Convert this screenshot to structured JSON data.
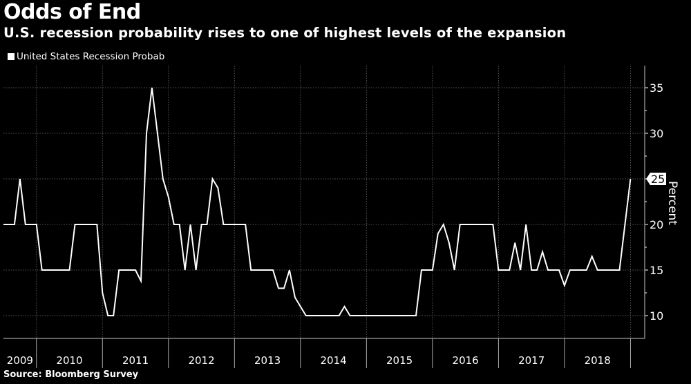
{
  "chart_data": {
    "type": "line",
    "title": "Odds of End",
    "subtitle": "U.S. recession probability rises to one of highest levels of the expansion",
    "ylabel": "Percent",
    "source": "Source: Bloomberg Survey",
    "ylim": [
      7.5,
      37.5
    ],
    "yticks": [
      10,
      15,
      20,
      25,
      30,
      35
    ],
    "xticks": [
      "2009",
      "2010",
      "2011",
      "2012",
      "2013",
      "2014",
      "2015",
      "2016",
      "2017",
      "2018"
    ],
    "grid": true,
    "legend_position": "top-left",
    "last_value_label": "25",
    "colors": {
      "background": "#000000",
      "line": "#ffffff",
      "grid": "#555555"
    },
    "series": [
      {
        "name": "United States Recession Probab",
        "points": [
          {
            "date": "2009-07",
            "value": 20
          },
          {
            "date": "2009-09",
            "value": 20
          },
          {
            "date": "2009-10",
            "value": 25
          },
          {
            "date": "2009-11",
            "value": 20
          },
          {
            "date": "2010-01",
            "value": 20
          },
          {
            "date": "2010-02",
            "value": 15
          },
          {
            "date": "2010-07",
            "value": 15
          },
          {
            "date": "2010-08",
            "value": 20
          },
          {
            "date": "2010-12",
            "value": 20
          },
          {
            "date": "2011-01",
            "value": 12.5
          },
          {
            "date": "2011-02",
            "value": 10
          },
          {
            "date": "2011-03",
            "value": 10
          },
          {
            "date": "2011-04",
            "value": 15
          },
          {
            "date": "2011-07",
            "value": 15
          },
          {
            "date": "2011-08",
            "value": 13.8
          },
          {
            "date": "2011-09",
            "value": 30
          },
          {
            "date": "2011-10",
            "value": 35
          },
          {
            "date": "2011-11",
            "value": 30
          },
          {
            "date": "2011-12",
            "value": 25
          },
          {
            "date": "2012-01",
            "value": 23
          },
          {
            "date": "2012-02",
            "value": 20
          },
          {
            "date": "2012-03",
            "value": 20
          },
          {
            "date": "2012-04",
            "value": 15
          },
          {
            "date": "2012-05",
            "value": 20
          },
          {
            "date": "2012-06",
            "value": 15
          },
          {
            "date": "2012-07",
            "value": 20
          },
          {
            "date": "2012-08",
            "value": 20
          },
          {
            "date": "2012-09",
            "value": 25
          },
          {
            "date": "2012-10",
            "value": 24
          },
          {
            "date": "2012-11",
            "value": 20
          },
          {
            "date": "2013-03",
            "value": 20
          },
          {
            "date": "2013-04",
            "value": 15
          },
          {
            "date": "2013-08",
            "value": 15
          },
          {
            "date": "2013-09",
            "value": 13
          },
          {
            "date": "2013-10",
            "value": 13
          },
          {
            "date": "2013-11",
            "value": 15
          },
          {
            "date": "2013-12",
            "value": 12
          },
          {
            "date": "2014-02",
            "value": 10
          },
          {
            "date": "2014-08",
            "value": 10
          },
          {
            "date": "2014-09",
            "value": 11
          },
          {
            "date": "2014-10",
            "value": 10
          },
          {
            "date": "2015-10",
            "value": 10
          },
          {
            "date": "2015-11",
            "value": 15
          },
          {
            "date": "2016-01",
            "value": 15
          },
          {
            "date": "2016-02",
            "value": 19
          },
          {
            "date": "2016-03",
            "value": 20
          },
          {
            "date": "2016-04",
            "value": 18
          },
          {
            "date": "2016-05",
            "value": 15
          },
          {
            "date": "2016-06",
            "value": 20
          },
          {
            "date": "2016-12",
            "value": 20
          },
          {
            "date": "2017-01",
            "value": 15
          },
          {
            "date": "2017-03",
            "value": 15
          },
          {
            "date": "2017-04",
            "value": 18
          },
          {
            "date": "2017-05",
            "value": 15
          },
          {
            "date": "2017-06",
            "value": 20
          },
          {
            "date": "2017-07",
            "value": 15
          },
          {
            "date": "2017-08",
            "value": 15
          },
          {
            "date": "2017-09",
            "value": 17
          },
          {
            "date": "2017-10",
            "value": 15
          },
          {
            "date": "2017-12",
            "value": 15
          },
          {
            "date": "2018-01",
            "value": 13.3
          },
          {
            "date": "2018-02",
            "value": 15
          },
          {
            "date": "2018-05",
            "value": 15
          },
          {
            "date": "2018-06",
            "value": 16.5
          },
          {
            "date": "2018-07",
            "value": 15
          },
          {
            "date": "2018-11",
            "value": 15
          },
          {
            "date": "2019-01",
            "value": 25
          }
        ]
      }
    ]
  }
}
